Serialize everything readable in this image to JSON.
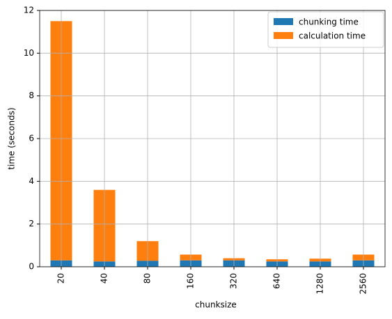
{
  "chart_data": {
    "type": "stacked_bar",
    "x_label": "chunksize",
    "y_label": "time (seconds)",
    "categories": [
      "20",
      "40",
      "80",
      "160",
      "320",
      "640",
      "1280",
      "2560"
    ],
    "series": [
      {
        "name": "chunking time",
        "color": "#1f77b4",
        "values": [
          0.3,
          0.25,
          0.28,
          0.3,
          0.3,
          0.25,
          0.25,
          0.3
        ]
      },
      {
        "name": "calculation time",
        "color": "#ff7f0e",
        "values": [
          11.2,
          3.35,
          0.92,
          0.27,
          0.1,
          0.1,
          0.13,
          0.27
        ]
      }
    ],
    "ylim": [
      0,
      12
    ],
    "yticks": [
      0,
      2,
      4,
      6,
      8,
      10,
      12
    ],
    "grid": true,
    "legend": "upper right"
  }
}
